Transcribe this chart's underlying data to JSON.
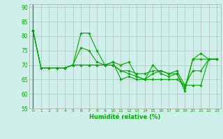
{
  "xlabel": "Humidité relative (%)",
  "xlim": [
    -0.5,
    23.5
  ],
  "ylim": [
    55,
    91
  ],
  "yticks": [
    55,
    60,
    65,
    70,
    75,
    80,
    85,
    90
  ],
  "xticks": [
    0,
    1,
    2,
    3,
    4,
    5,
    6,
    7,
    8,
    9,
    10,
    11,
    12,
    13,
    14,
    15,
    16,
    17,
    18,
    19,
    20,
    21,
    22,
    23
  ],
  "xtick_labels": [
    "0",
    "1",
    "2",
    "3",
    "4",
    "5",
    "6",
    "7",
    "8",
    "9",
    "10",
    "11",
    "12",
    "13",
    "14",
    "15",
    "16",
    "17",
    "18",
    "19",
    "20",
    "21",
    "22",
    "23"
  ],
  "background_color": "#cff0ea",
  "grid_color": "#bbbbbb",
  "line_color": "#00aa00",
  "lines": [
    [
      82,
      69,
      69,
      69,
      69,
      70,
      81,
      81,
      75,
      70,
      71,
      70,
      71,
      66,
      65,
      70,
      67,
      66,
      67,
      61,
      72,
      74,
      72,
      72
    ],
    [
      82,
      69,
      69,
      69,
      69,
      70,
      76,
      75,
      71,
      70,
      71,
      65,
      66,
      65,
      65,
      67,
      68,
      67,
      67,
      62,
      72,
      72,
      72,
      72
    ],
    [
      82,
      69,
      69,
      69,
      69,
      70,
      70,
      70,
      70,
      70,
      70,
      68,
      68,
      67,
      67,
      68,
      68,
      67,
      68,
      63,
      68,
      68,
      72,
      72
    ],
    [
      82,
      69,
      69,
      69,
      69,
      70,
      70,
      70,
      70,
      70,
      70,
      68,
      67,
      66,
      65,
      65,
      65,
      65,
      65,
      63,
      63,
      63,
      72,
      72
    ]
  ]
}
